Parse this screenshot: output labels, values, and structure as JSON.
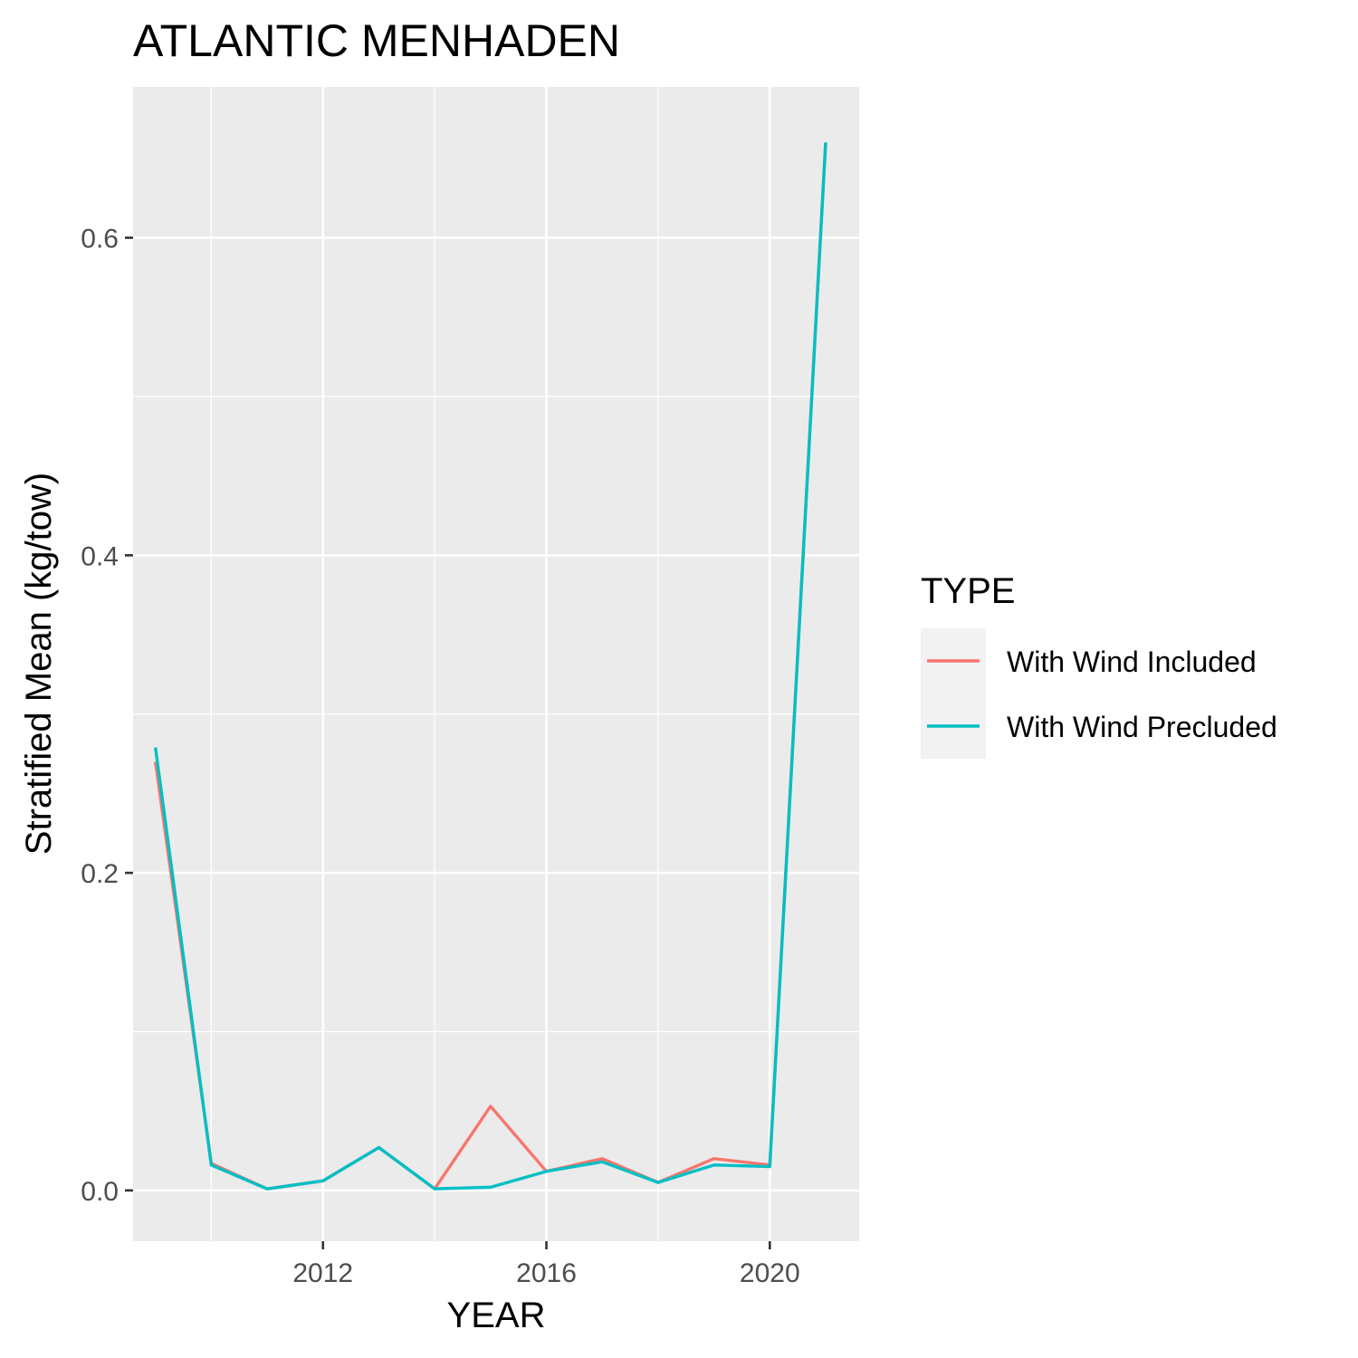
{
  "chart_data": {
    "type": "line",
    "title": "ATLANTIC MENHADEN",
    "xlabel": "YEAR",
    "ylabel": "Stratified Mean (kg/tow)",
    "xlim": [
      2008.6,
      2021.6
    ],
    "ylim": [
      -0.032,
      0.695
    ],
    "x_ticks": [
      2012,
      2016,
      2020
    ],
    "x_tick_labels": [
      "2012",
      "2016",
      "2020"
    ],
    "x_minor": [
      2010,
      2014,
      2018
    ],
    "y_ticks": [
      0.0,
      0.2,
      0.4,
      0.6
    ],
    "y_tick_labels": [
      "0.0",
      "0.2",
      "0.4",
      "0.6"
    ],
    "y_minor": [
      0.1,
      0.3,
      0.5
    ],
    "grid": true,
    "background": "#ebebeb",
    "legend": {
      "title": "TYPE",
      "placement": "right"
    },
    "x": [
      2009,
      2010,
      2011,
      2012,
      2013,
      2014,
      2015,
      2016,
      2017,
      2018,
      2019,
      2020,
      2021
    ],
    "series": [
      {
        "name": "With Wind Included",
        "color": "#f8766d",
        "values": [
          0.27,
          0.017,
          0.001,
          0.006,
          0.027,
          0.001,
          0.053,
          0.012,
          0.02,
          0.005,
          0.02,
          0.016,
          0.66
        ]
      },
      {
        "name": "With Wind Precluded",
        "color": "#00bfc4",
        "values": [
          0.279,
          0.016,
          0.001,
          0.006,
          0.027,
          0.001,
          0.002,
          0.012,
          0.018,
          0.005,
          0.016,
          0.015,
          0.66
        ]
      }
    ]
  }
}
